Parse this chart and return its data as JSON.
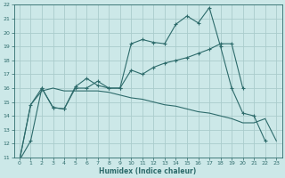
{
  "xlabel": "Humidex (Indice chaleur)",
  "bg_color": "#cce8e8",
  "grid_color": "#aacccc",
  "line_color": "#2d6b6b",
  "xlim": [
    -0.5,
    23.5
  ],
  "ylim": [
    11,
    22
  ],
  "xticks": [
    0,
    1,
    2,
    3,
    4,
    5,
    6,
    7,
    8,
    9,
    10,
    11,
    12,
    13,
    14,
    15,
    16,
    17,
    18,
    19,
    20,
    21,
    22,
    23
  ],
  "yticks": [
    11,
    12,
    13,
    14,
    15,
    16,
    17,
    18,
    19,
    20,
    21,
    22
  ],
  "curve1_x": [
    0,
    1,
    2,
    3,
    4,
    5,
    6,
    7,
    8,
    9,
    10,
    11,
    12,
    13,
    14,
    15,
    16,
    17,
    18,
    19,
    20,
    21,
    22,
    23
  ],
  "curve1_y": [
    10.8,
    12.2,
    16.0,
    14.6,
    14.5,
    16.1,
    16.7,
    16.2,
    16.0,
    16.0,
    19.2,
    19.5,
    19.3,
    19.2,
    20.6,
    21.2,
    20.7,
    21.8,
    19.0,
    16.0,
    14.2,
    14.0,
    12.2,
    null
  ],
  "curve2_x": [
    0,
    1,
    2,
    3,
    4,
    5,
    6,
    7,
    8,
    9,
    10,
    11,
    12,
    13,
    14,
    15,
    16,
    17,
    18,
    19,
    20,
    21,
    22,
    23
  ],
  "curve2_y": [
    10.8,
    14.8,
    16.0,
    14.6,
    14.5,
    16.0,
    16.0,
    16.5,
    16.0,
    16.0,
    17.3,
    17.0,
    17.5,
    17.8,
    18.0,
    18.2,
    18.5,
    18.8,
    19.2,
    19.2,
    16.0,
    null,
    null,
    null
  ],
  "curve3_x": [
    0,
    1,
    2,
    3,
    4,
    5,
    6,
    7,
    8,
    9,
    10,
    11,
    12,
    13,
    14,
    15,
    16,
    17,
    18,
    19,
    20,
    21,
    22,
    23
  ],
  "curve3_y": [
    10.8,
    14.8,
    15.8,
    16.0,
    15.8,
    15.8,
    15.8,
    15.8,
    15.7,
    15.5,
    15.3,
    15.2,
    15.0,
    14.8,
    14.7,
    14.5,
    14.3,
    14.2,
    14.0,
    13.8,
    13.5,
    13.5,
    13.8,
    12.2
  ]
}
